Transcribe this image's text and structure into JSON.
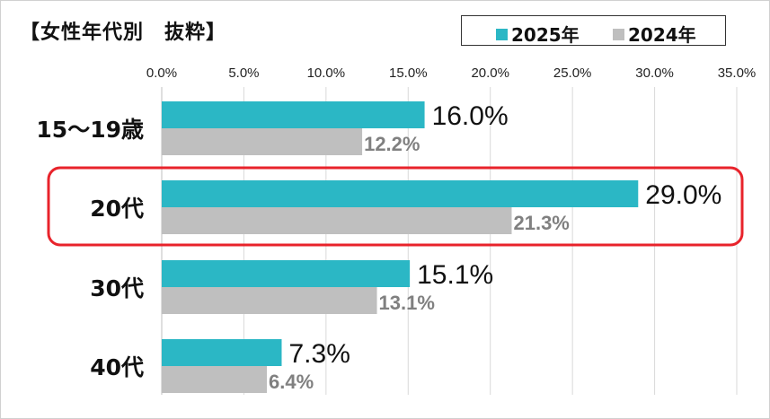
{
  "title": "【女性年代別　抜粋】",
  "legend": {
    "s2025": "2025年",
    "s2024": "2024年"
  },
  "colors": {
    "s2025": "#2BB7C5",
    "s2024": "#BFBFBF",
    "highlight": "#E8232B",
    "label2025": "#111111",
    "label2024": "#808080"
  },
  "chart_data": {
    "type": "bar",
    "orientation": "horizontal",
    "title": "【女性年代別　抜粋】",
    "categories": [
      "15～19歳",
      "20代",
      "30代",
      "40代"
    ],
    "series": [
      {
        "name": "2025年",
        "values": [
          16.0,
          29.0,
          15.1,
          7.3
        ],
        "labels": [
          "16.0%",
          "29.0%",
          "15.1%",
          "7.3%"
        ]
      },
      {
        "name": "2024年",
        "values": [
          12.2,
          21.3,
          13.1,
          6.4
        ],
        "labels": [
          "12.2%",
          "21.3%",
          "13.1%",
          "6.4%"
        ]
      }
    ],
    "xlim": [
      0,
      35
    ],
    "xticks": [
      "0.0%",
      "5.0%",
      "10.0%",
      "15.0%",
      "20.0%",
      "25.0%",
      "30.0%",
      "35.0%"
    ],
    "grid": true,
    "legend_position": "top-right",
    "highlighted_category": "20代"
  }
}
